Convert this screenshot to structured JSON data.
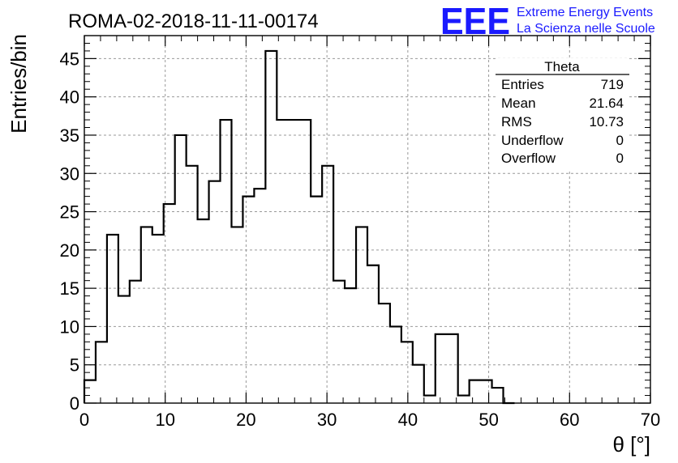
{
  "header": {
    "run_title": "ROMA-02-2018-11-11-00174",
    "logo_text": "EEE",
    "project_line1": "Extreme Energy Events",
    "project_line2": "La Scienza nelle Scuole"
  },
  "stats_box": {
    "name": "Theta",
    "rows": [
      {
        "label": "Entries",
        "value": "719"
      },
      {
        "label": "Mean",
        "value": "21.64"
      },
      {
        "label": "RMS",
        "value": "10.73"
      },
      {
        "label": "Underflow",
        "value": "0"
      },
      {
        "label": "Overflow",
        "value": "0"
      }
    ]
  },
  "colors": {
    "line": "#000000",
    "grid": "#999999",
    "logo_blue": "#1a1aff",
    "project_text": "#1a1aff"
  },
  "chart_data": {
    "type": "bar",
    "style": "step histogram",
    "xlabel": "θ [°]",
    "ylabel": "Entries/bin",
    "xlim": [
      0,
      70
    ],
    "ylim": [
      0,
      48
    ],
    "grid": true,
    "bin_width": 1.4,
    "values": [
      3,
      8,
      22,
      14,
      16,
      23,
      22,
      26,
      35,
      31,
      24,
      29,
      37,
      23,
      27,
      28,
      46,
      37,
      37,
      37,
      27,
      31,
      16,
      15,
      23,
      18,
      13,
      10,
      8,
      5,
      1,
      9,
      9,
      1,
      3,
      3,
      2,
      0
    ],
    "x_ticks": [
      "0",
      "10",
      "20",
      "30",
      "40",
      "50",
      "60",
      "70"
    ],
    "y_ticks": [
      "0",
      "5",
      "10",
      "15",
      "20",
      "25",
      "30",
      "35",
      "40",
      "45"
    ]
  }
}
